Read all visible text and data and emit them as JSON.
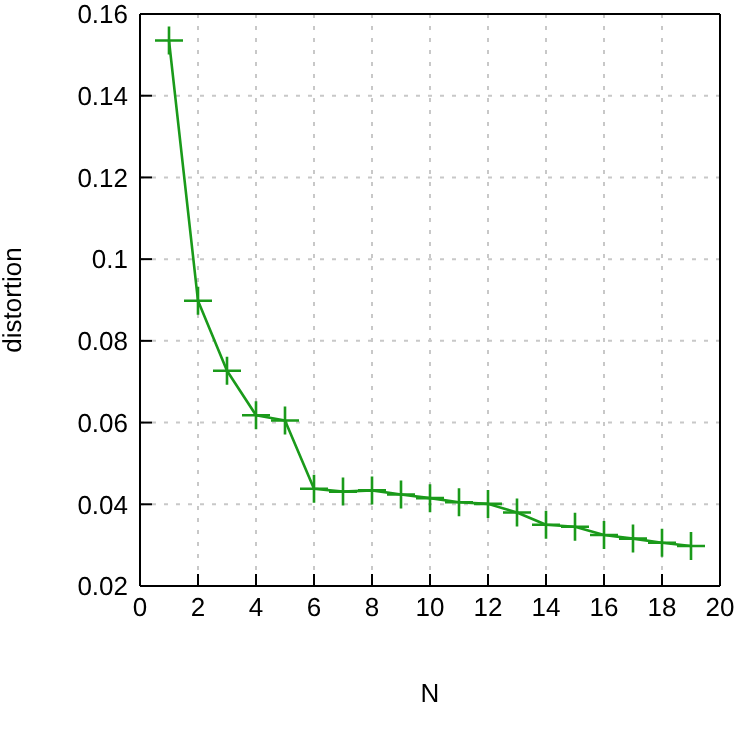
{
  "chart_data": {
    "type": "line",
    "xlabel": "N",
    "ylabel": "distortion",
    "x": [
      1,
      2,
      3,
      4,
      5,
      6,
      7,
      8,
      9,
      10,
      11,
      12,
      13,
      14,
      15,
      16,
      17,
      18,
      19
    ],
    "series": [
      {
        "color": "#1a9a1a",
        "values": [
          0.1535,
          0.0898,
          0.0727,
          0.0618,
          0.0605,
          0.0438,
          0.0431,
          0.0434,
          0.0424,
          0.0415,
          0.0405,
          0.0401,
          0.038,
          0.035,
          0.0345,
          0.0325,
          0.0316,
          0.0306,
          0.0298
        ]
      }
    ],
    "xlim": [
      0,
      20
    ],
    "xticks": [
      0,
      2,
      4,
      6,
      8,
      10,
      12,
      14,
      16,
      18,
      20
    ],
    "ylim": [
      0.02,
      0.16
    ],
    "yticks": [
      0.02,
      0.04,
      0.06,
      0.08,
      0.1,
      0.12,
      0.14,
      0.16
    ],
    "grid": true,
    "marker": "cross",
    "line_style": "solid",
    "legend": false
  }
}
